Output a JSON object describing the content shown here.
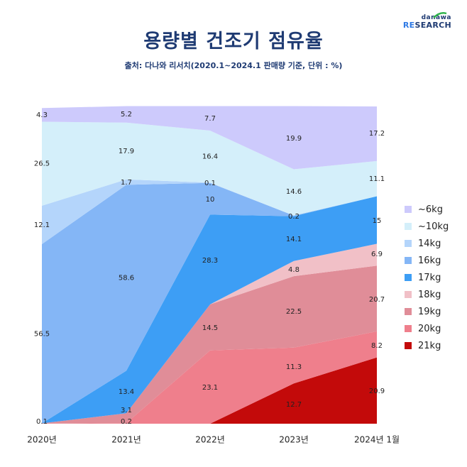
{
  "title": "용량별 건조기 점유율",
  "subtitle": "출처: 다나와 리서치(2020.1~2024.1 판매량 기준, 단위 : %)",
  "logo": {
    "top": "danawa",
    "re": "RE",
    "rest": "SEARCH"
  },
  "chart_data": {
    "type": "area",
    "stacked": true,
    "categories": [
      "2020년",
      "2021년",
      "2022년",
      "2023년",
      "2024년 1월"
    ],
    "ylim": [
      0,
      100
    ],
    "series": [
      {
        "name": "21kg",
        "color": "#c30a0a",
        "values": [
          0,
          0,
          0,
          12.7,
          20.9
        ]
      },
      {
        "name": "20kg",
        "color": "#ef7f8c",
        "values": [
          0,
          0.2,
          23.1,
          11.3,
          8.2
        ]
      },
      {
        "name": "19kg",
        "color": "#e08d98",
        "values": [
          0.1,
          3.1,
          14.5,
          22.5,
          20.7
        ]
      },
      {
        "name": "18kg",
        "color": "#f1c0c7",
        "values": [
          0,
          0,
          0,
          4.8,
          6.9
        ]
      },
      {
        "name": "17kg",
        "color": "#3d9ef5",
        "values": [
          0,
          13.4,
          28.3,
          14.1,
          15
        ]
      },
      {
        "name": "16kg",
        "color": "#84b6f6",
        "values": [
          56.5,
          58.6,
          10,
          0.2,
          0
        ]
      },
      {
        "name": "14kg",
        "color": "#b4d5fb",
        "values": [
          12.1,
          1.7,
          0.1,
          0,
          0
        ]
      },
      {
        "name": "~10kg",
        "color": "#d4effa",
        "values": [
          26.5,
          17.9,
          16.4,
          14.6,
          11.1
        ]
      },
      {
        "name": "~6kg",
        "color": "#cdcafc",
        "values": [
          4.3,
          5.2,
          7.7,
          19.9,
          17.2
        ]
      }
    ],
    "labels": [
      [
        "0.1",
        "0.1"
      ],
      [
        "3.1",
        "0.2",
        "13.4",
        "58.6",
        "1.7",
        "17.9",
        "5.2"
      ],
      [
        "23.1",
        "14.5",
        "28.3",
        "10",
        "0.1",
        "16.4",
        "7.7"
      ],
      [
        "12.7",
        "11.3",
        "22.5",
        "4.8",
        "14.1",
        "0.2",
        "14.6",
        "19.9"
      ],
      [
        "20.9",
        "8.2",
        "20.7",
        "6.9",
        "15",
        "11.1",
        "17.2"
      ]
    ],
    "legend_order": [
      "~6kg",
      "~10kg",
      "14kg",
      "16kg",
      "17kg",
      "18kg",
      "19kg",
      "20kg",
      "21kg"
    ],
    "legend_position": "right"
  }
}
